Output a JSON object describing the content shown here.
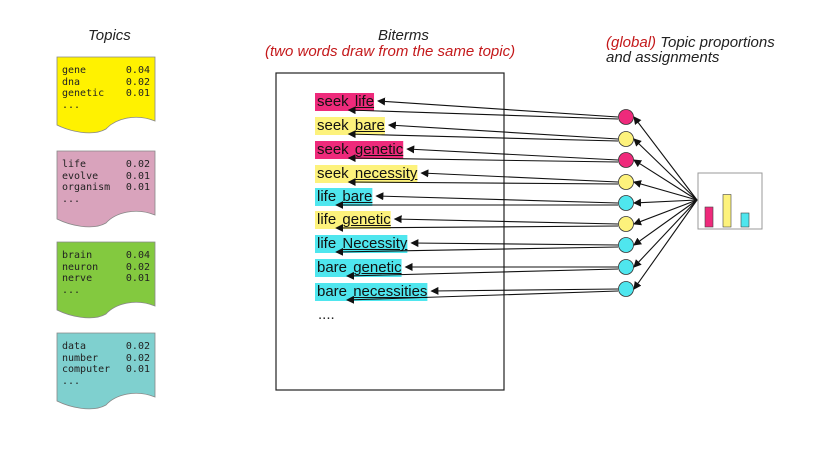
{
  "topics_title": "Topics",
  "biterms_title": "Biterms",
  "biterms_subtitle": "(two words draw from the same topic)",
  "right_title_global": "(global)",
  "right_title_rest": " Topic proportions",
  "right_title_line2": "and assignments",
  "colors": {
    "yellow": "#fff200",
    "pink": "#d9a3bc",
    "green": "#83c93f",
    "teal": "#7fd0cf",
    "magenta": "#ee2a7b",
    "lightyellow": "#fdf27c",
    "cyan": "#4fe6ee",
    "red": "#c4191b"
  },
  "topics": [
    {
      "color": "yellow",
      "rows": [
        [
          "gene",
          "0.04"
        ],
        [
          "dna",
          "0.02"
        ],
        [
          "genetic",
          "0.01"
        ]
      ],
      "more": "..."
    },
    {
      "color": "pink",
      "rows": [
        [
          "life",
          "0.02"
        ],
        [
          "evolve",
          "0.01"
        ],
        [
          "organism",
          "0.01"
        ]
      ],
      "more": "..."
    },
    {
      "color": "green",
      "rows": [
        [
          "brain",
          "0.04"
        ],
        [
          "neuron",
          "0.02"
        ],
        [
          "nerve",
          "0.01"
        ]
      ],
      "more": "..."
    },
    {
      "color": "teal",
      "rows": [
        [
          "data",
          "0.02"
        ],
        [
          "number",
          "0.02"
        ],
        [
          "computer",
          "0.01"
        ]
      ],
      "more": "..."
    }
  ],
  "biterms": [
    {
      "w1": "seek",
      "w2": "life",
      "color": "magenta"
    },
    {
      "w1": "seek",
      "w2": "bare",
      "color": "lightyellow"
    },
    {
      "w1": "seek",
      "w2": "genetic",
      "color": "magenta"
    },
    {
      "w1": "seek",
      "w2": "necessity",
      "color": "lightyellow"
    },
    {
      "w1": "life",
      "w2": "bare",
      "color": "cyan"
    },
    {
      "w1": "life",
      "w2": "genetic",
      "color": "lightyellow"
    },
    {
      "w1": "life",
      "w2": "Necessity",
      "color": "cyan"
    },
    {
      "w1": "bare",
      "w2": "genetic",
      "color": "cyan"
    },
    {
      "w1": "bare",
      "w2": "necessities",
      "color": "cyan"
    }
  ],
  "biterms_more": "....",
  "proportions": [
    {
      "color": "magenta",
      "value": 0.4
    },
    {
      "color": "lightyellow",
      "value": 0.65
    },
    {
      "color": "cyan",
      "value": 0.28
    }
  ]
}
